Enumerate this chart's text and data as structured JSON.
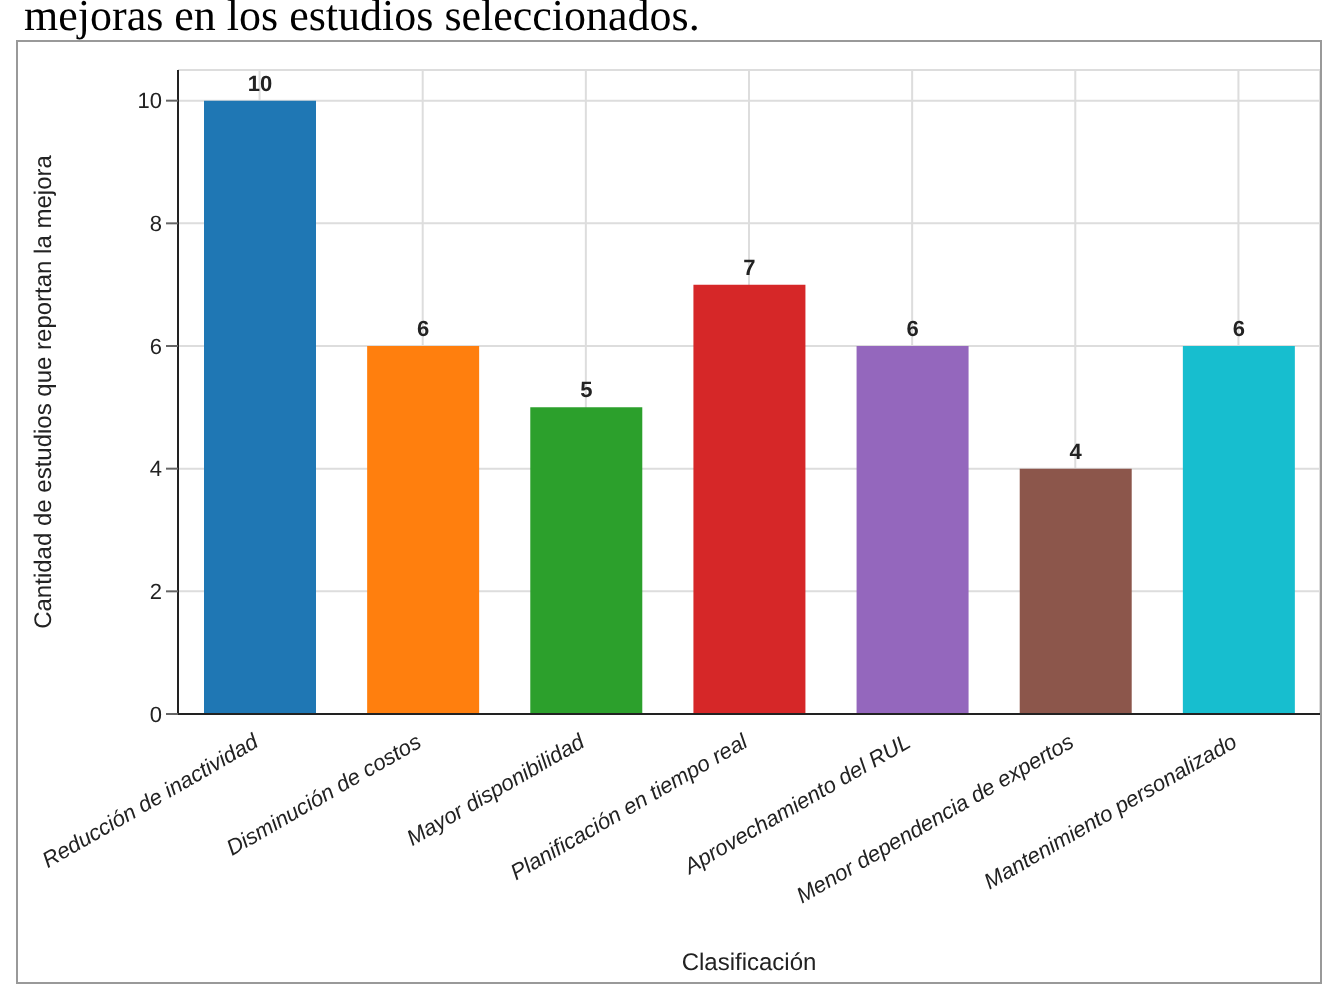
{
  "chart_data": {
    "type": "bar",
    "title": "mejoras en los estudios seleccionados.",
    "xlabel": "Clasificación",
    "ylabel": "Cantidad de estudios que reportan la mejora",
    "categories": [
      "Reducción de inactividad",
      "Disminución de costos",
      "Mayor disponibilidad",
      "Planificación en tiempo real",
      "Aprovechamiento del RUL",
      "Menor dependencia de expertos",
      "Mantenimiento personalizado"
    ],
    "values": [
      10,
      6,
      5,
      7,
      6,
      4,
      6
    ],
    "colors": [
      "#1f77b4",
      "#ff7f0e",
      "#2ca02c",
      "#d62728",
      "#9467bd",
      "#8c564b",
      "#17becf"
    ],
    "ylim": [
      0,
      10.5
    ],
    "yticks": [
      0,
      2,
      4,
      6,
      8,
      10
    ],
    "grid": true,
    "data_labels": true
  }
}
